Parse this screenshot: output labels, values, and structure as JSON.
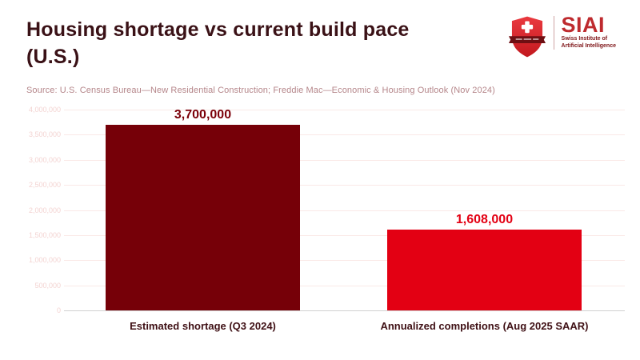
{
  "header": {
    "title_line1": "Housing shortage vs current build pace",
    "title_line2": "(U.S.)",
    "source": "Source: U.S. Census Bureau—New Residential Construction; Freddie Mac—Economic & Housing Outlook (Nov 2024)"
  },
  "logo": {
    "name": "SIAI",
    "subtitle_line1": "Swiss Institute of",
    "subtitle_line2": "Artificial Intelligence"
  },
  "chart_data": {
    "type": "bar",
    "title": "Housing shortage vs current build pace (U.S.)",
    "categories": [
      "Estimated shortage (Q3 2024)",
      "Annualized completions (Aug 2025 SAAR)"
    ],
    "values": [
      3700000,
      1608000
    ],
    "value_labels": [
      "3,700,000",
      "1,608,000"
    ],
    "bar_colors": [
      "#760008",
      "#E30013"
    ],
    "value_label_colors": [
      "#7B0009",
      "#E30013"
    ],
    "ylim": [
      0,
      4000000
    ],
    "yticks": [
      {
        "value": 0,
        "label": "0"
      },
      {
        "value": 500000,
        "label": "500,000"
      },
      {
        "value": 1000000,
        "label": "1,000,000"
      },
      {
        "value": 1500000,
        "label": "1,500,000"
      },
      {
        "value": 2000000,
        "label": "2,000,000"
      },
      {
        "value": 2500000,
        "label": "2,500,000"
      },
      {
        "value": 3000000,
        "label": "3,000,000"
      },
      {
        "value": 3500000,
        "label": "3,500,000"
      },
      {
        "value": 4000000,
        "label": "4,000,000"
      }
    ],
    "grid": true,
    "legend_position": "none",
    "xlabel": "",
    "ylabel": ""
  },
  "colors": {
    "title": "#3A1116",
    "source": "#B5868A",
    "category_label": "#3F1015",
    "ytick_label": "#F3D3D1",
    "gridline": "#FAE9E7",
    "baseline": "#D0D0D0",
    "background": "#FFFFFF",
    "logo_red": "#BE2A2E",
    "logo_dark": "#7E1417"
  }
}
